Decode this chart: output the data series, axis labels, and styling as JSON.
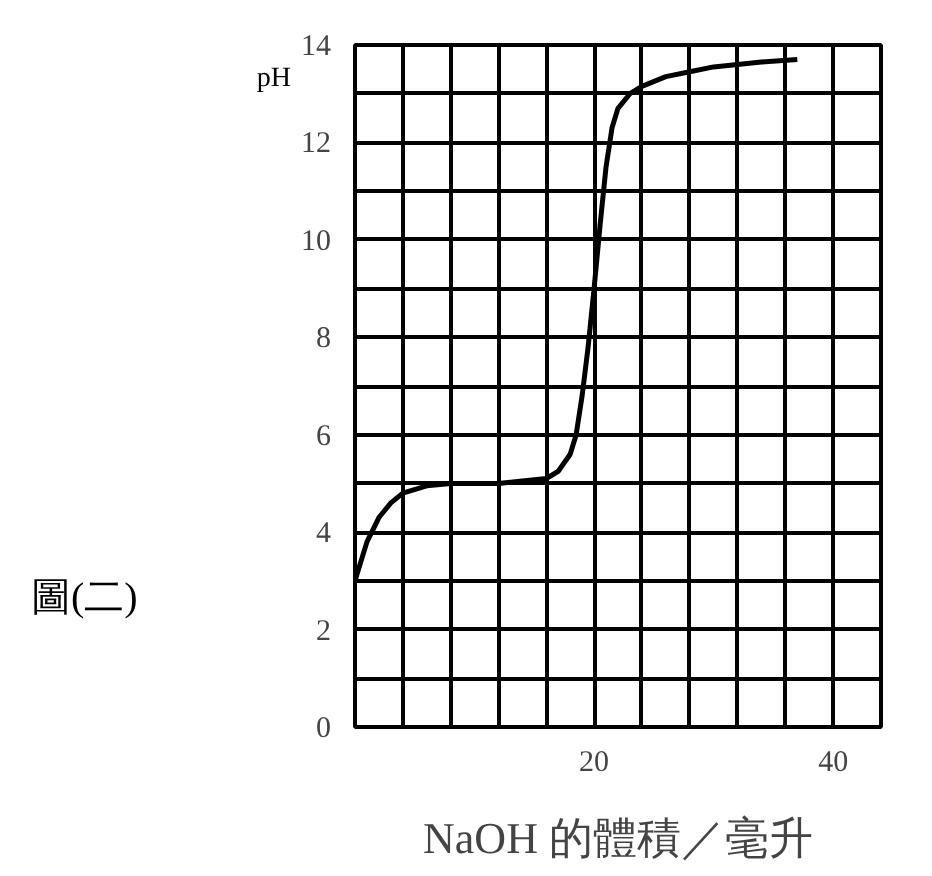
{
  "chart_data": {
    "type": "line",
    "xlabel": "NaOH 的體積／毫升",
    "ylabel": "pH",
    "annotations": [
      "圖(二)"
    ],
    "x": [
      0,
      1,
      2,
      3,
      4,
      6,
      8,
      10,
      12,
      14,
      16,
      17,
      18,
      18.5,
      19,
      19.5,
      20,
      20.5,
      21,
      21.5,
      22,
      23,
      24,
      26,
      28,
      30,
      32,
      34,
      37
    ],
    "series": [
      {
        "color": "#000000",
        "values": [
          3,
          3.8,
          4.3,
          4.6,
          4.8,
          4.95,
          5,
          5,
          5,
          5.05,
          5.1,
          5.25,
          5.6,
          6,
          6.8,
          7.8,
          9,
          10.3,
          11.5,
          12.3,
          12.7,
          13,
          13.15,
          13.35,
          13.45,
          13.55,
          13.6,
          13.65,
          13.7
        ]
      }
    ],
    "xlim": [
      0,
      44
    ],
    "ylim": [
      0,
      14
    ],
    "xticks": [
      {
        "value": 0,
        "label": null
      },
      {
        "value": 4,
        "label": null
      },
      {
        "value": 8,
        "label": null
      },
      {
        "value": 12,
        "label": null
      },
      {
        "value": 16,
        "label": null
      },
      20,
      {
        "value": 24,
        "label": null
      },
      {
        "value": 28,
        "label": null
      },
      {
        "value": 32,
        "label": null
      },
      {
        "value": 36,
        "label": null
      },
      40,
      {
        "value": 44,
        "label": null
      }
    ],
    "yticks": [
      0,
      {
        "value": 1,
        "label": null
      },
      2,
      {
        "value": 3,
        "label": null
      },
      4,
      {
        "value": 5,
        "label": null
      },
      6,
      {
        "value": 7,
        "label": null
      },
      8,
      {
        "value": 9,
        "label": null
      },
      10,
      {
        "value": 11,
        "label": null
      },
      12,
      {
        "value": 13,
        "label": null
      },
      14
    ],
    "grid": true,
    "marker": "none",
    "line_style": "solid"
  }
}
